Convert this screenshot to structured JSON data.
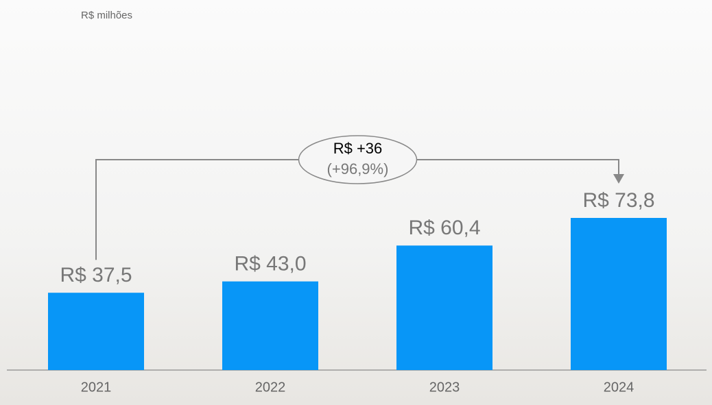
{
  "chart_data": {
    "type": "bar",
    "subtitle": "R$ milhões",
    "categories": [
      "2021",
      "2022",
      "2023",
      "2024"
    ],
    "values": [
      37.5,
      43.0,
      60.4,
      73.8
    ],
    "value_labels": [
      "R$ 37,5",
      "R$ 43,0",
      "R$ 60,4",
      "R$ 73,8"
    ],
    "color": "#0896f7",
    "annotation": {
      "text": "R$ +36",
      "subtext": "(+96,9%)"
    }
  }
}
